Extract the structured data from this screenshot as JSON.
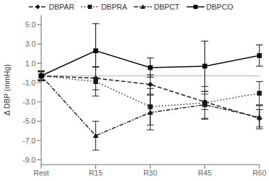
{
  "chart_data": {
    "type": "line",
    "ylabel": "Δ DBP (mmHg)",
    "categories": [
      "Rest",
      "R15",
      "R30",
      "R45",
      "R60"
    ],
    "series": [
      {
        "name": "DBPAR",
        "color": "#1a1a1a",
        "marker": "diamond",
        "line_style": "dashed",
        "values": [
          -0.3,
          -0.55,
          -1.2,
          -3.0,
          -4.7
        ],
        "yerr": [
          0.4,
          1.2,
          1.0,
          0.8,
          0.9
        ]
      },
      {
        "name": "DBPRA",
        "color": "#1a1a1a",
        "marker": "square",
        "line_style": "dotted",
        "values": [
          -0.3,
          -0.9,
          -3.5,
          -3.1,
          -2.1
        ],
        "yerr": [
          0.5,
          1.5,
          1.9,
          1.7,
          1.2
        ]
      },
      {
        "name": "DBPCT",
        "color": "#1a1a1a",
        "marker": "triangle",
        "line_style": "dashdot",
        "values": [
          -0.3,
          -6.5,
          -4.1,
          -3.3,
          -4.6
        ],
        "yerr": [
          0.5,
          1.5,
          1.8,
          1.4,
          1.2
        ]
      },
      {
        "name": "DBPCO",
        "color": "#000000",
        "marker": "square",
        "line_style": "solid",
        "values": [
          -0.3,
          2.3,
          0.55,
          0.7,
          1.8
        ],
        "yerr": [
          0.5,
          2.8,
          1.0,
          2.6,
          1.1
        ]
      }
    ],
    "ylim": [
      -9.5,
      6.0
    ],
    "yticks": [
      {
        "value": -9.0,
        "label": "-9.0"
      },
      {
        "value": -7.0,
        "label": "-7.0"
      },
      {
        "value": -5.0,
        "label": "-5.0"
      },
      {
        "value": -3.0,
        "label": "-3.0"
      },
      {
        "value": -1.0,
        "label": "-1.0"
      },
      {
        "value": 1.0,
        "label": "1.0"
      },
      {
        "value": 3.0,
        "label": "3.0"
      },
      {
        "value": 5.0,
        "label": "5.0"
      }
    ],
    "hline": -0.3,
    "grid": false,
    "legend": "top"
  }
}
